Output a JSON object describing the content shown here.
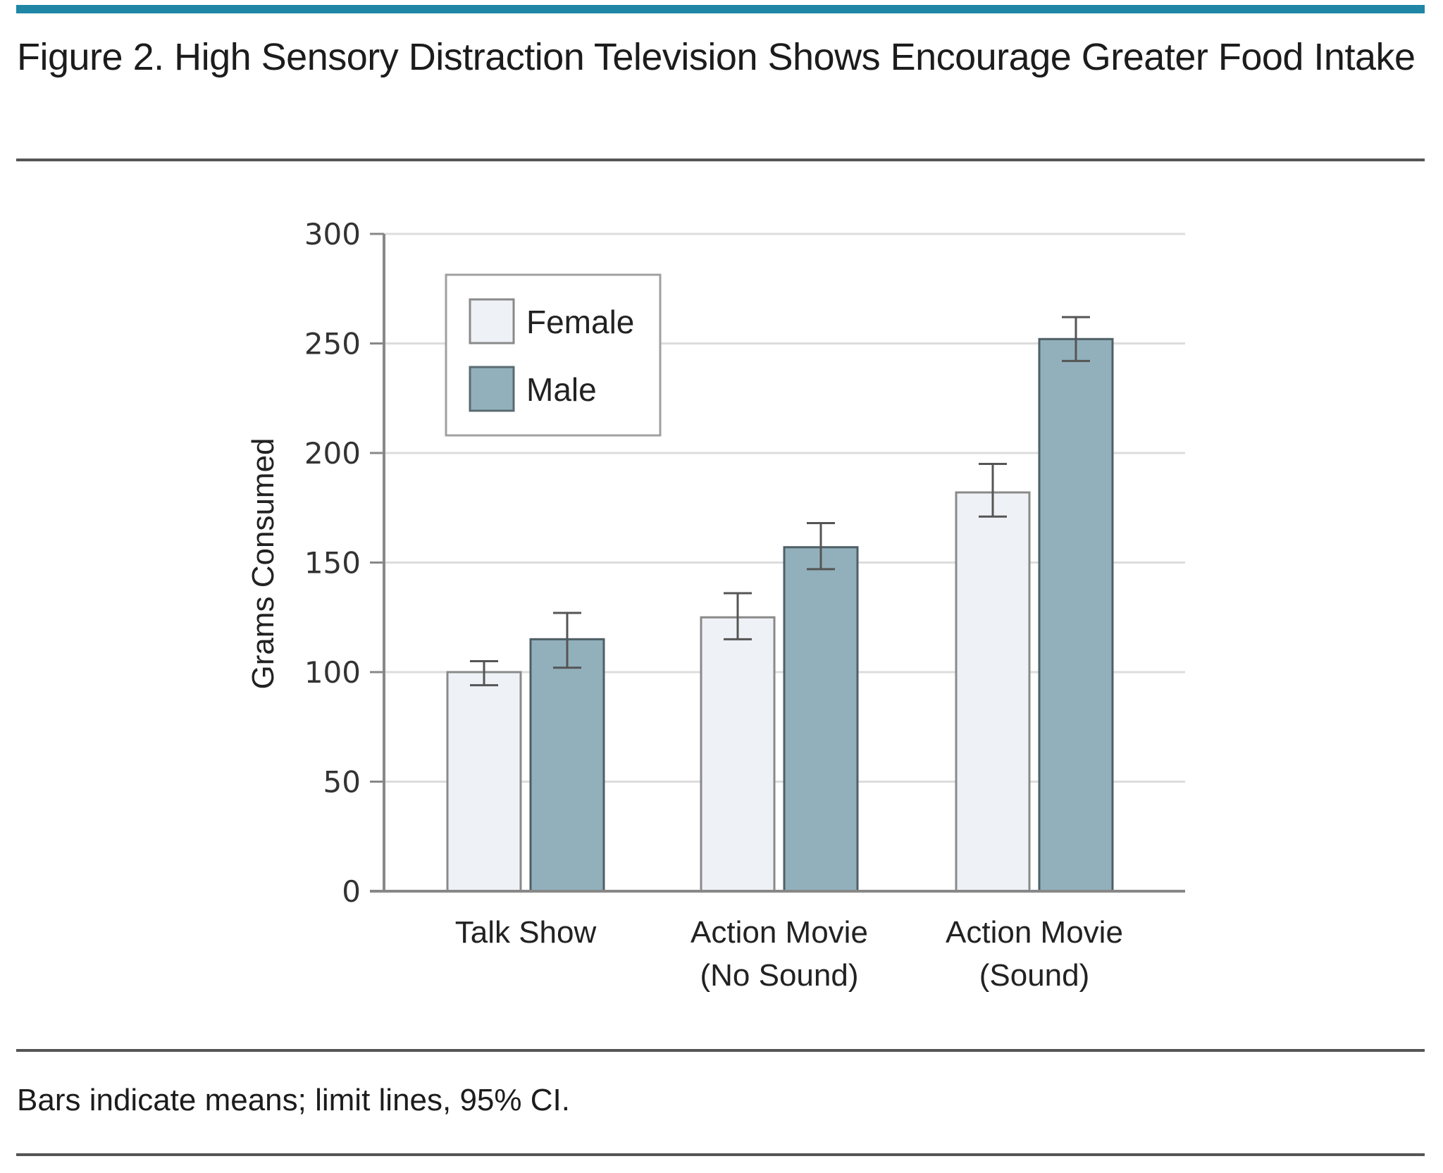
{
  "figure": {
    "title": "Figure 2. High Sensory Distraction Television Shows Encourage Greater Food Intake",
    "footnote": "Bars indicate means; limit lines, 95% CI.",
    "accent_color": "#1f86a6"
  },
  "chart_data": {
    "type": "bar",
    "title": "Figure 2. High Sensory Distraction Television Shows Encourage Greater Food Intake",
    "xlabel": "",
    "ylabel": "Grams Consumed",
    "ylim": [
      0,
      300
    ],
    "yticks": [
      0,
      50,
      100,
      150,
      200,
      250,
      300
    ],
    "grid": true,
    "legend_position": "top-left",
    "categories": [
      "Talk Show",
      "Action Movie (No Sound)",
      "Action Movie (Sound)"
    ],
    "category_lines": [
      [
        "Talk Show"
      ],
      [
        "Action Movie",
        "(No Sound)"
      ],
      [
        "Action Movie",
        "(Sound)"
      ]
    ],
    "series": [
      {
        "name": "Female",
        "color": "#eef1f5",
        "values": [
          100,
          125,
          182
        ],
        "ci_lower": [
          94,
          115,
          171
        ],
        "ci_upper": [
          105,
          136,
          195
        ]
      },
      {
        "name": "Male",
        "color": "#92b0bc",
        "values": [
          115,
          157,
          252
        ],
        "ci_lower": [
          102,
          147,
          242
        ],
        "ci_upper": [
          127,
          168,
          262
        ]
      }
    ],
    "note": "Bars indicate means; limit lines, 95% CI."
  }
}
